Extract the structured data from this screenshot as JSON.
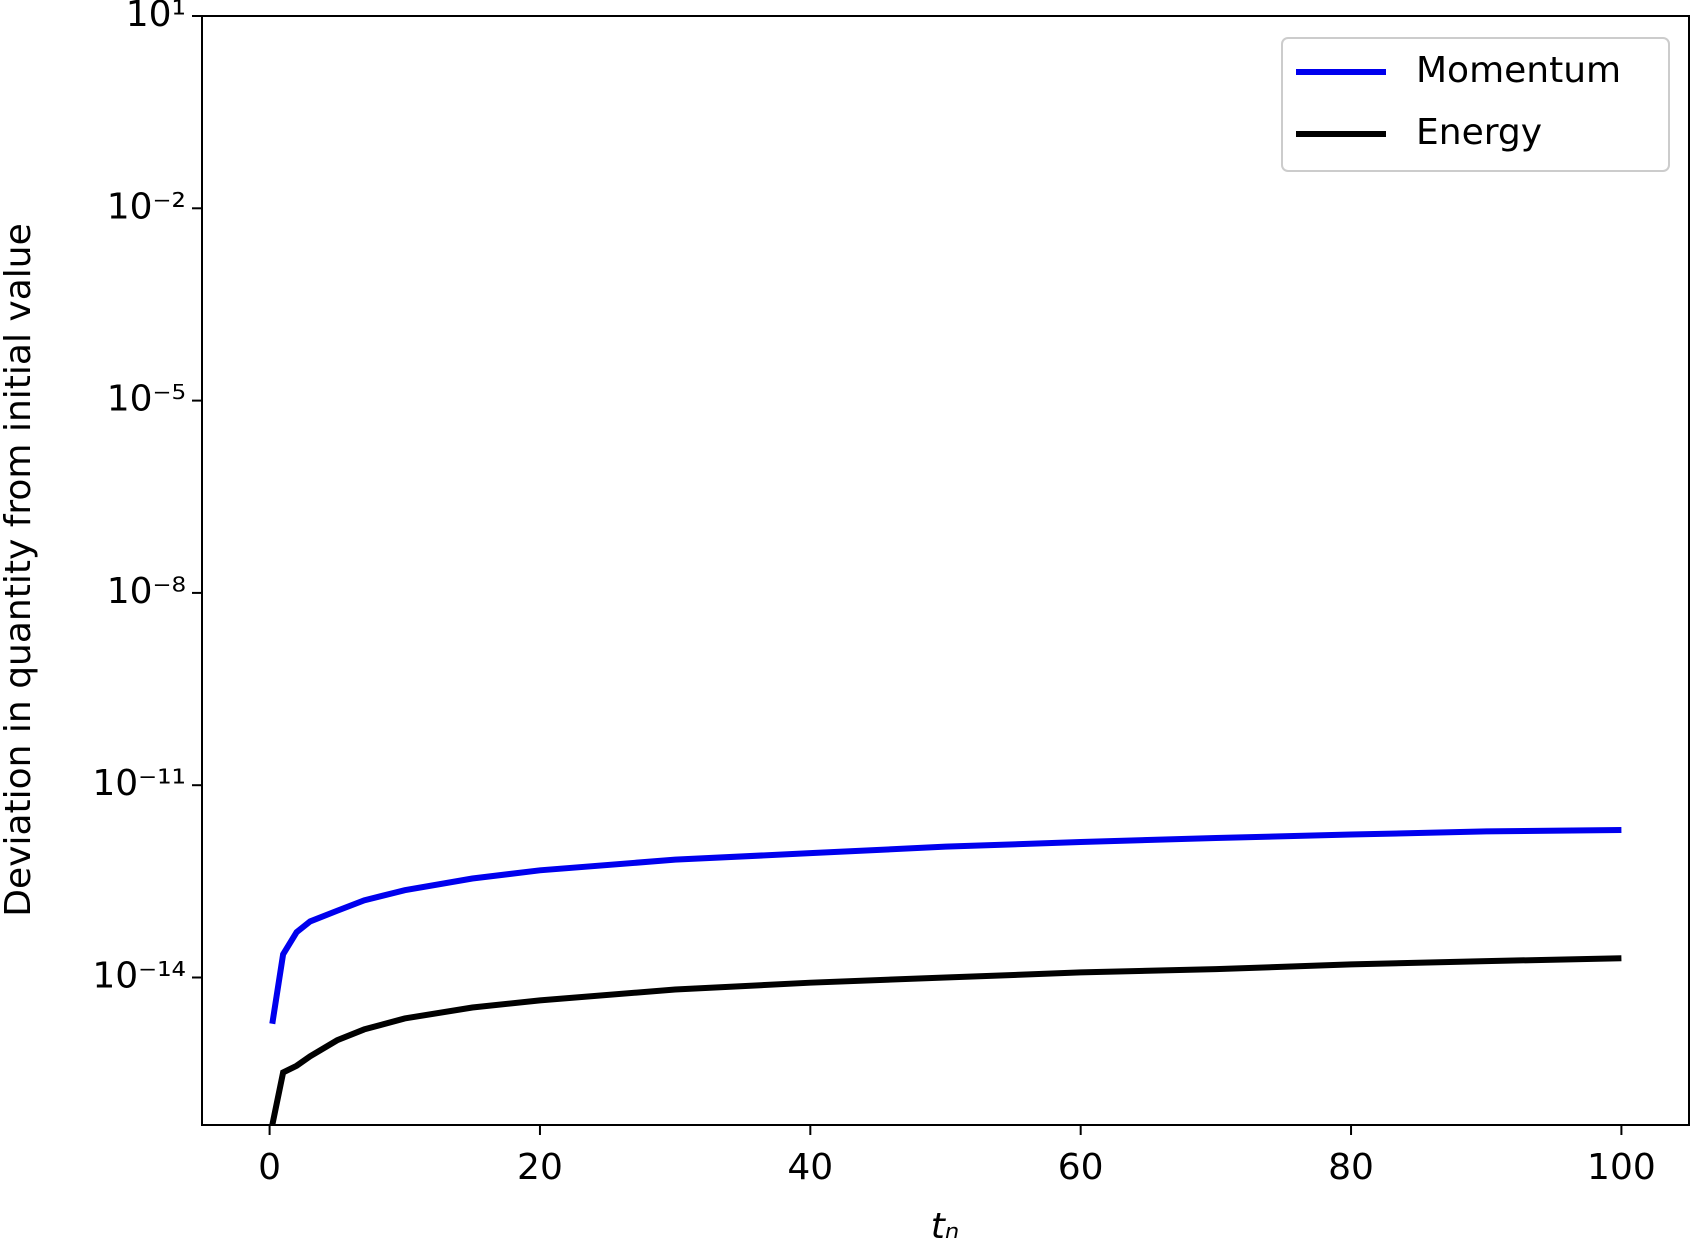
{
  "chart_data": {
    "type": "line",
    "xlabel": "tₙ",
    "ylabel": "Deviation in quantity from initial value",
    "xlim": [
      -5,
      105
    ],
    "xticks": [
      0,
      20,
      40,
      60,
      80,
      100
    ],
    "ylim": [
      5e-17,
      10
    ],
    "yscale": "log",
    "yticks": [
      {
        "value": 10,
        "label": "10¹"
      },
      {
        "value": 0.01,
        "label": "10⁻²"
      },
      {
        "value": 1e-05,
        "label": "10⁻⁵"
      },
      {
        "value": 1e-08,
        "label": "10⁻⁸"
      },
      {
        "value": 1e-11,
        "label": "10⁻¹¹"
      },
      {
        "value": 1e-14,
        "label": "10⁻¹⁴"
      }
    ],
    "legend": "upper right",
    "x": [
      0.2,
      1,
      2,
      3,
      5,
      7,
      10,
      15,
      20,
      30,
      40,
      50,
      60,
      70,
      80,
      90,
      100
    ],
    "series": [
      {
        "name": "Momentum",
        "color": "#0000ee",
        "values": [
          1.9e-15,
          2.3e-14,
          5.1e-14,
          7.5e-14,
          1.1e-13,
          1.6e-13,
          2.3e-13,
          3.5e-13,
          4.7e-13,
          6.9e-13,
          8.7e-13,
          1.1e-12,
          1.3e-12,
          1.5e-12,
          1.7e-12,
          1.9e-12,
          2e-12
        ]
      },
      {
        "name": "Energy",
        "color": "#000000",
        "values": [
          5e-17,
          3.3e-16,
          4.2e-16,
          5.9e-16,
          1.05e-15,
          1.55e-15,
          2.3e-15,
          3.4e-15,
          4.4e-15,
          6.5e-15,
          8.3e-15,
          1e-14,
          1.2e-14,
          1.35e-14,
          1.6e-14,
          1.8e-14,
          2e-14
        ]
      }
    ]
  }
}
